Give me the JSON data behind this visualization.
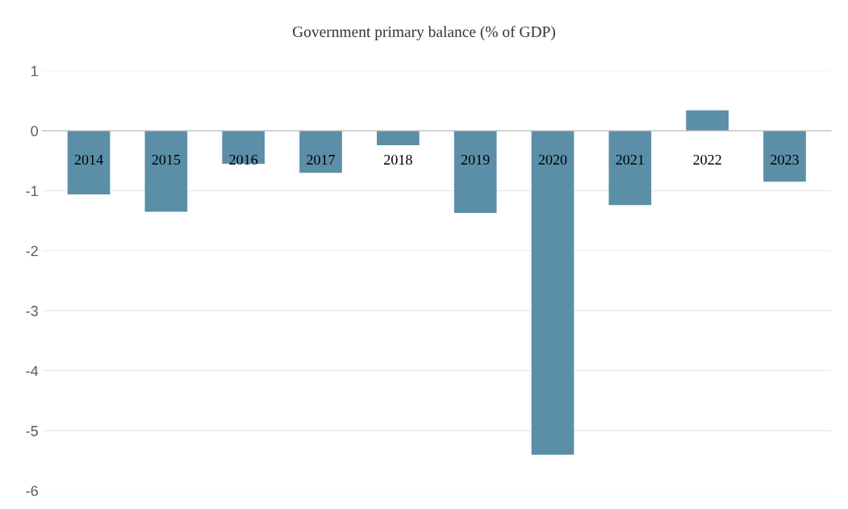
{
  "chart_data": {
    "type": "bar",
    "title": "Government primary balance (% of GDP)",
    "categories": [
      "2014",
      "2015",
      "2016",
      "2017",
      "2018",
      "2019",
      "2020",
      "2021",
      "2022",
      "2023"
    ],
    "values": [
      -1.06,
      -1.35,
      -0.55,
      -0.7,
      -0.24,
      -1.37,
      -5.4,
      -1.24,
      0.34,
      -0.85
    ],
    "color": "#5b8fa8",
    "ylim": [
      -6,
      1
    ],
    "yticks": [
      -6,
      -5,
      -4,
      -3,
      -2,
      -1,
      0,
      1
    ],
    "grid": "y"
  }
}
